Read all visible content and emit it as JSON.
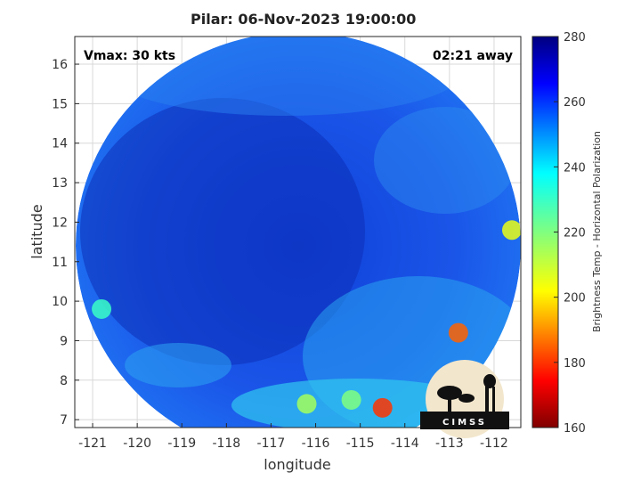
{
  "title": "Pilar: 06-Nov-2023 19:00:00",
  "vmax_label": "Vmax: 30 kts",
  "time_away_label": "02:21 away",
  "xlabel": "longitude",
  "ylabel": "latitude",
  "colorbar_label": "Brightness Temp - Horizontal Polarization",
  "colorbar_ticks": [
    "280",
    "260",
    "240",
    "220",
    "200",
    "180",
    "160"
  ],
  "logo_text": "CIMSS",
  "x_ticks": [
    "-121",
    "-120",
    "-119",
    "-118",
    "-117",
    "-116",
    "-115",
    "-114",
    "-113",
    "-112"
  ],
  "y_ticks": [
    "16",
    "15",
    "14",
    "13",
    "12",
    "11",
    "10",
    "9",
    "8",
    "7"
  ],
  "chart_data": {
    "type": "heatmap",
    "xlim": [
      -121.4,
      -111.4
    ],
    "ylim": [
      6.8,
      16.7
    ],
    "clim": [
      160,
      280
    ],
    "colormap": "jet",
    "grid": true,
    "warm_regions_K": [
      {
        "lon": -116.2,
        "lat": 7.4,
        "value": 215
      },
      {
        "lon": -114.5,
        "lat": 7.3,
        "value": 180
      },
      {
        "lon": -115.2,
        "lat": 7.5,
        "value": 220
      },
      {
        "lon": -111.6,
        "lat": 11.8,
        "value": 205
      },
      {
        "lon": -112.8,
        "lat": 9.2,
        "value": 185
      },
      {
        "lon": -120.8,
        "lat": 9.8,
        "value": 230
      }
    ]
  }
}
